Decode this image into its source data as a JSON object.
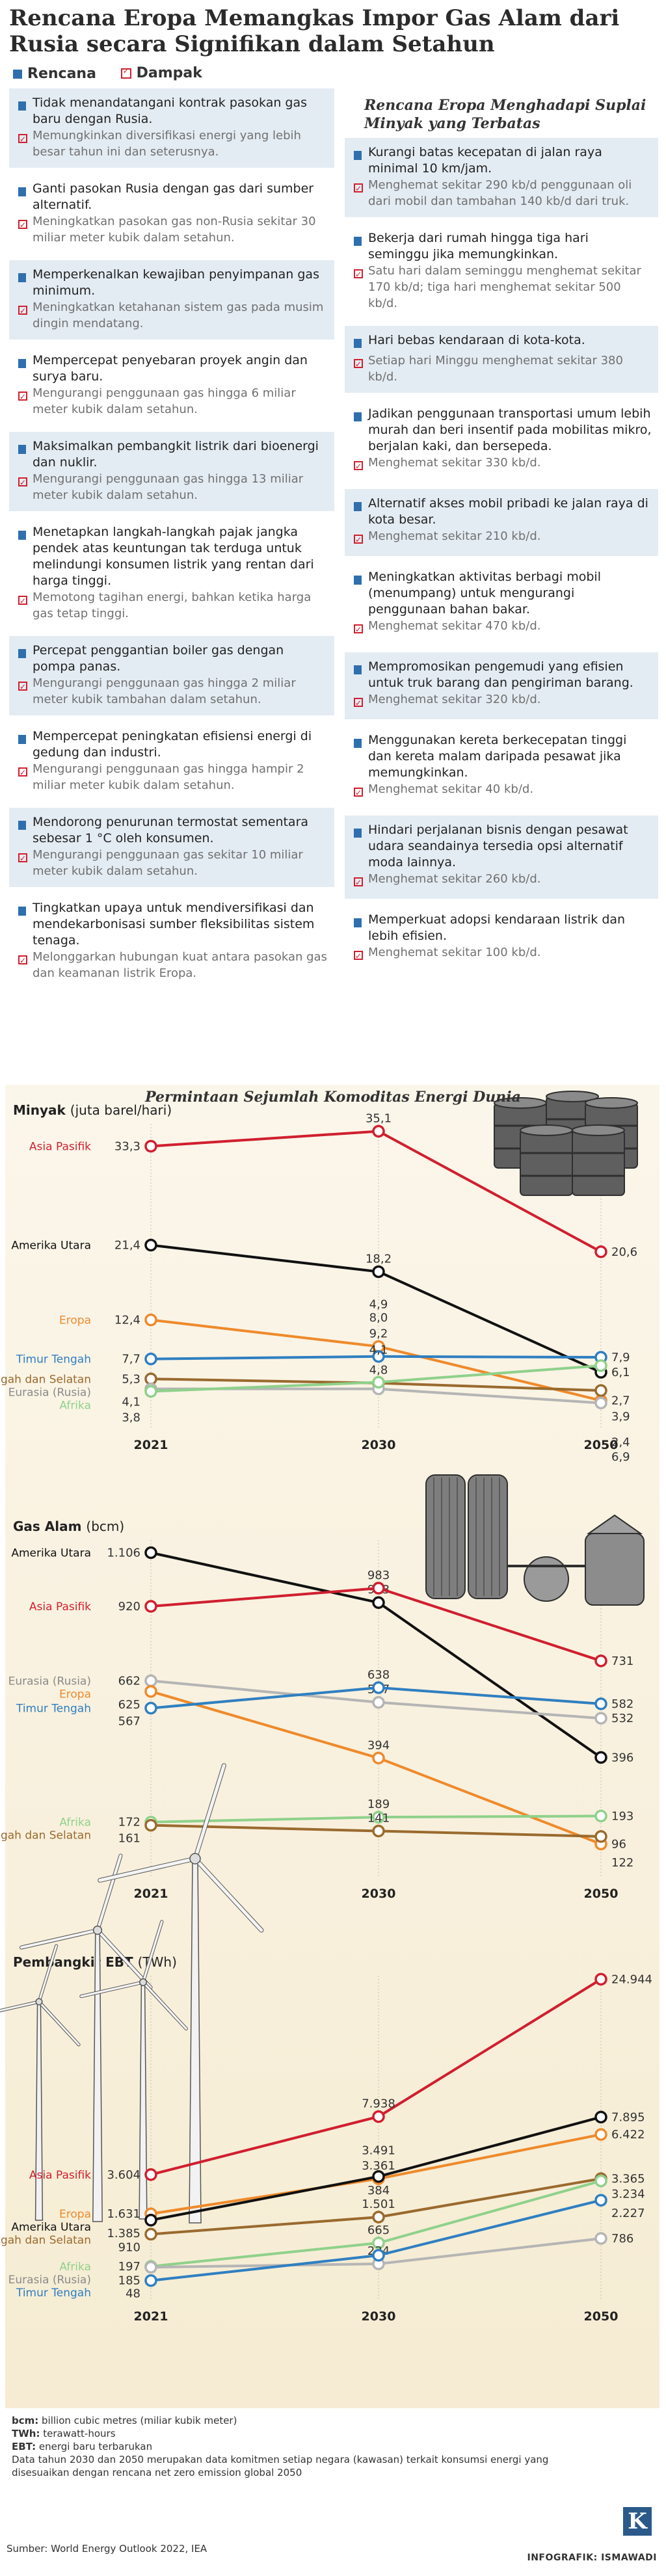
{
  "title": "Rencana Eropa Memangkas Impor Gas Alam dari Rusia secara Signifikan dalam Setahun",
  "legend": {
    "plan": "Rencana",
    "impact": "Dampak"
  },
  "left_cards": [
    {
      "plan": "Tidak menandatangani kontrak pasokan gas baru dengan Rusia.",
      "impact": "Memungkinkan diversifikasi energi yang lebih besar tahun ini dan seterusnya."
    },
    {
      "plan": "Ganti pasokan Rusia dengan gas dari sumber alternatif.",
      "impact": "Meningkatkan pasokan gas non-Rusia sekitar 30 miliar meter kubik dalam setahun."
    },
    {
      "plan": "Memperkenalkan kewajiban penyimpanan gas minimum.",
      "impact": "Meningkatkan ketahanan sistem gas pada musim dingin mendatang."
    },
    {
      "plan": "Mempercepat penyebaran proyek angin dan surya baru.",
      "impact": "Mengurangi penggunaan gas hingga 6 miliar meter kubik dalam setahun."
    },
    {
      "plan": "Maksimalkan pembangkit listrik dari bioenergi dan nuklir.",
      "impact": "Mengurangi penggunaan gas hingga 13 miliar meter kubik dalam setahun."
    },
    {
      "plan": "Menetapkan langkah-langkah pajak jangka pendek atas keuntungan tak terduga untuk melindungi konsumen listrik yang rentan dari harga tinggi.",
      "impact": "Memotong tagihan energi, bahkan ketika harga gas tetap tinggi."
    },
    {
      "plan": "Percepat penggantian boiler gas dengan pompa panas.",
      "impact": "Mengurangi penggunaan gas hingga 2 miliar meter kubik tambahan dalam setahun."
    },
    {
      "plan": "Mempercepat peningkatan efisiensi energi di gedung dan industri.",
      "impact": "Mengurangi penggunaan gas hingga hampir 2 miliar meter kubik dalam setahun."
    },
    {
      "plan": "Mendorong penurunan termostat sementara sebesar 1 °C oleh konsumen.",
      "impact": "Mengurangi penggunaan gas sekitar 10 miliar meter kubik dalam setahun."
    },
    {
      "plan": "Tingkatkan upaya untuk mendiversifikasi dan mendekarbonisasi sumber fleksibilitas sistem tenaga.",
      "impact": "Melonggarkan hubungan kuat antara pasokan gas dan keamanan listrik Eropa."
    }
  ],
  "right_title": "Rencana Eropa Menghadapi Suplai Minyak yang Terbatas",
  "right_cards": [
    {
      "plan": "Kurangi batas kecepatan di jalan raya minimal 10 km/jam.",
      "impact": "Menghemat sekitar 290 kb/d penggunaan oli dari mobil dan tambahan 140 kb/d dari truk."
    },
    {
      "plan": "Bekerja dari rumah hingga tiga hari seminggu jika memungkinkan.",
      "impact": "Satu hari dalam seminggu menghemat sekitar 170 kb/d; tiga hari menghemat sekitar 500 kb/d."
    },
    {
      "plan": "Hari bebas kendaraan di kota-kota.",
      "impact": "Setiap hari Minggu menghemat sekitar 380 kb/d."
    },
    {
      "plan": "Jadikan penggunaan transportasi umum lebih murah dan beri insentif pada mobilitas mikro, berjalan kaki, dan bersepeda.",
      "impact": "Menghemat sekitar 330 kb/d."
    },
    {
      "plan": "Alternatif akses mobil pribadi ke jalan raya di kota besar.",
      "impact": "Menghemat sekitar 210 kb/d."
    },
    {
      "plan": "Meningkatkan aktivitas berbagi mobil (menumpang) untuk mengurangi penggunaan bahan bakar.",
      "impact": "Menghemat sekitar 470 kb/d."
    },
    {
      "plan": "Mempromosikan pengemudi yang efisien untuk truk barang dan pengiriman barang.",
      "impact": "Menghemat sekitar 320 kb/d."
    },
    {
      "plan": "Menggunakan kereta berkecepatan tinggi dan kereta malam daripada pesawat jika memungkinkan.",
      "impact": "Menghemat sekitar 40 kb/d."
    },
    {
      "plan": "Hindari perjalanan bisnis dengan pesawat udara seandainya tersedia opsi alternatif moda lainnya.",
      "impact": "Menghemat sekitar 260 kb/d."
    },
    {
      "plan": "Memperkuat adopsi kendaraan listrik dan lebih efisien.",
      "impact": "Menghemat sekitar 100 kb/d."
    }
  ],
  "chart_section_title": "Permintaan Sejumlah Komoditas Energi Dunia",
  "colors": {
    "asia_pasifik": "#d01f2f",
    "amerika_utara": "#111111",
    "eropa": "#ee8a2c",
    "timur_tengah": "#2f7fc1",
    "amerika_tengah_selatan": "#9a6a2e",
    "eurasia": "#b5b5b5",
    "afrika": "#8fd18b"
  },
  "chart_data": [
    {
      "type": "line",
      "title": "Minyak",
      "unit": "(juta barel/hari)",
      "x": [
        "2021",
        "2030",
        "2050"
      ],
      "series": [
        {
          "name": "Asia Pasifik",
          "key": "asia_pasifik",
          "values": [
            33.3,
            35.1,
            20.6
          ],
          "labels": [
            "33,3",
            "35,1",
            "20,6"
          ]
        },
        {
          "name": "Amerika Utara",
          "key": "amerika_utara",
          "values": [
            21.4,
            18.2,
            6.1
          ],
          "labels": [
            "21,4",
            "18,2",
            "6,1"
          ]
        },
        {
          "name": "Eropa",
          "key": "eropa",
          "values": [
            12.4,
            9.2,
            2.7
          ],
          "labels": [
            "12,4",
            "9,2",
            "2,7"
          ]
        },
        {
          "name": "Timur Tengah",
          "key": "timur_tengah",
          "values": [
            7.7,
            8.0,
            7.9
          ],
          "labels": [
            "7,7",
            "8,0",
            "7,9"
          ]
        },
        {
          "name": "Amerika Tengah dan Selatan",
          "key": "amerika_tengah_selatan",
          "values": [
            5.3,
            4.8,
            3.9
          ],
          "labels": [
            "5,3",
            "4,8",
            "3,9"
          ]
        },
        {
          "name": "Eurasia (Rusia)",
          "key": "eurasia",
          "values": [
            4.1,
            4.1,
            2.4
          ],
          "labels": [
            "4,1",
            "4,1",
            "2,4"
          ]
        },
        {
          "name": "Afrika",
          "key": "afrika",
          "values": [
            3.8,
            4.9,
            6.9
          ],
          "labels": [
            "3,8",
            "4,9",
            "6,9"
          ]
        }
      ]
    },
    {
      "type": "line",
      "title": "Gas Alam",
      "unit": "(bcm)",
      "x": [
        "2021",
        "2030",
        "2050"
      ],
      "series": [
        {
          "name": "Amerika Utara",
          "key": "amerika_utara",
          "values": [
            1106,
            933,
            396
          ],
          "labels": [
            "1.106",
            "933",
            "396"
          ]
        },
        {
          "name": "Asia Pasifik",
          "key": "asia_pasifik",
          "values": [
            920,
            983,
            731
          ],
          "labels": [
            "920",
            "983",
            "731"
          ]
        },
        {
          "name": "Eurasia (Rusia)",
          "key": "eurasia",
          "values": [
            662,
            587,
            532
          ],
          "labels": [
            "662",
            "587",
            "532"
          ]
        },
        {
          "name": "Eropa",
          "key": "eropa",
          "values": [
            625,
            394,
            96
          ],
          "labels": [
            "625",
            "394",
            "96"
          ]
        },
        {
          "name": "Timur Tengah",
          "key": "timur_tengah",
          "values": [
            567,
            638,
            582
          ],
          "labels": [
            "567",
            "638",
            "582"
          ]
        },
        {
          "name": "Afrika",
          "key": "afrika",
          "values": [
            172,
            189,
            193
          ],
          "labels": [
            "172",
            "189",
            "193"
          ]
        },
        {
          "name": "Amerika Tengah dan Selatan",
          "key": "amerika_tengah_selatan",
          "values": [
            161,
            141,
            122
          ],
          "labels": [
            "161",
            "141",
            "122"
          ]
        }
      ]
    },
    {
      "type": "line",
      "title": "Pembangkit EBT",
      "unit": "(TWh)",
      "x": [
        "2021",
        "2030",
        "2050"
      ],
      "series": [
        {
          "name": "Asia Pasifik",
          "key": "asia_pasifik",
          "values": [
            3604,
            7938,
            24944
          ],
          "labels": [
            "3.604",
            "7.938",
            "24.944"
          ]
        },
        {
          "name": "Eropa",
          "key": "eropa",
          "values": [
            1631,
            3361,
            6422
          ],
          "labels": [
            "1.631",
            "3.361",
            "6.422"
          ]
        },
        {
          "name": "Amerika Utara",
          "key": "amerika_utara",
          "values": [
            1385,
            3491,
            7895
          ],
          "labels": [
            "1.385",
            "3.491",
            "7.895"
          ]
        },
        {
          "name": "Amerika Tengah dan Selatan",
          "key": "amerika_tengah_selatan",
          "values": [
            910,
            1501,
            3365
          ],
          "labels": [
            "910",
            "1.501",
            "3.365"
          ]
        },
        {
          "name": "Afrika",
          "key": "afrika",
          "values": [
            197,
            665,
            3234
          ],
          "labels": [
            "197",
            "665",
            "3.234"
          ]
        },
        {
          "name": "Eurasia (Rusia)",
          "key": "eurasia",
          "values": [
            185,
            234,
            786
          ],
          "labels": [
            "185",
            "234",
            "786"
          ]
        },
        {
          "name": "Timur Tengah",
          "key": "timur_tengah",
          "values": [
            48,
            384,
            2227
          ],
          "labels": [
            "48",
            "384",
            "2.227"
          ]
        }
      ]
    }
  ],
  "footer": {
    "notes": [
      {
        "term": "bcm:",
        "text": " billion cubic metres (miliar kubik meter)"
      },
      {
        "term": "TWh:",
        "text": " terawatt-hours"
      },
      {
        "term": "EBT:",
        "text": " energi baru terbarukan"
      }
    ],
    "note_text": "Data tahun 2030 dan 2050 merupakan data komitmen setiap negara (kawasan) terkait konsumsi energi yang disesuaikan dengan rencana net zero emission global 2050",
    "source": "Sumber: World Energy Outlook 2022, IEA",
    "credit": "INFOGRAFIK: ISMAWADI",
    "logo": "K"
  }
}
